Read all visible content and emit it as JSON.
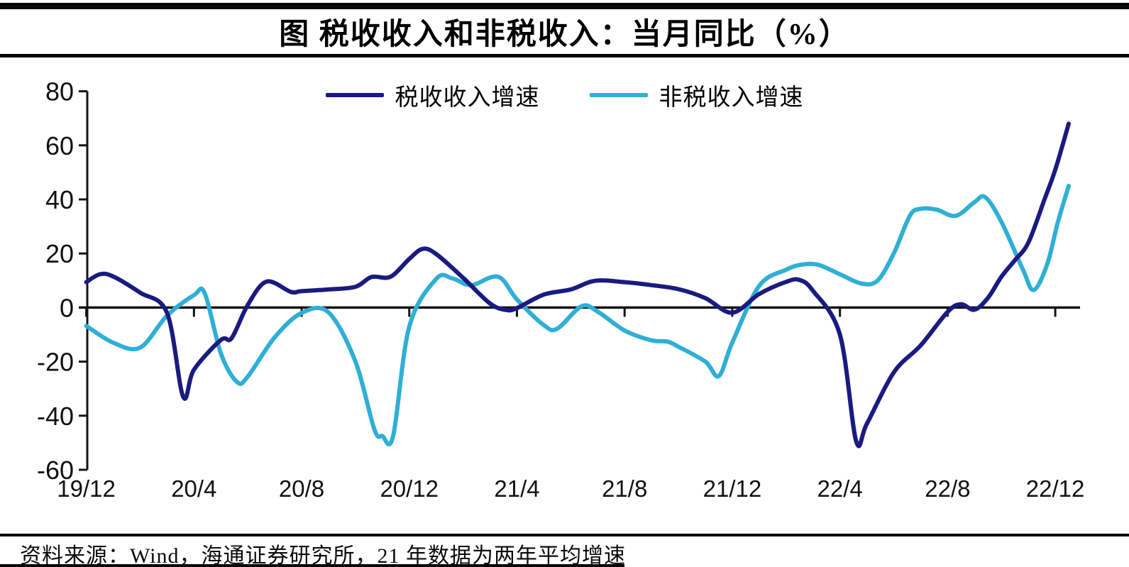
{
  "title": "图 税收收入和非税收入：当月同比（%）",
  "source_note": "资料来源：Wind，海通证券研究所，21 年数据为两年平均增速",
  "legend": [
    {
      "label": "税收收入增速",
      "color": "#1a1a80"
    },
    {
      "label": "非税收入增速",
      "color": "#2fafd6"
    }
  ],
  "colors": {
    "tax_line": "#1a1a80",
    "nontax_line": "#2fafd6",
    "axis": "#141414",
    "text": "#111111"
  },
  "chart_data": {
    "type": "line",
    "title": "图 税收收入和非税收入：当月同比（%）",
    "x_unit": "month index, 0 = 19/12 … 36 = 22/12",
    "x_axis": {
      "tick_labels": [
        "19/12",
        "20/4",
        "20/8",
        "20/12",
        "21/4",
        "21/8",
        "21/12",
        "22/4",
        "22/8",
        "22/12"
      ],
      "tick_month_index": [
        0,
        4,
        8,
        12,
        16,
        20,
        24,
        28,
        32,
        36
      ]
    },
    "y_axis": {
      "ticks": [
        80,
        60,
        40,
        20,
        0,
        -20,
        -40,
        -60
      ],
      "range": [
        -60,
        80
      ]
    },
    "grid": false,
    "legend_position": "top-center",
    "series": [
      {
        "name": "税收收入增速",
        "color": "#1a1a80",
        "points": [
          [
            0,
            9.4
          ],
          [
            0.5,
            12.3
          ],
          [
            1,
            11.5
          ],
          [
            2,
            5.5
          ],
          [
            3,
            -2
          ],
          [
            3.6,
            -33
          ],
          [
            4,
            -23
          ],
          [
            5,
            -12
          ],
          [
            5.4,
            -11.3
          ],
          [
            6,
            1
          ],
          [
            6.7,
            9.6
          ],
          [
            7.6,
            5.8
          ],
          [
            8,
            6.1
          ],
          [
            9,
            6.7
          ],
          [
            10,
            7.7
          ],
          [
            10.6,
            11.3
          ],
          [
            11.3,
            11.4
          ],
          [
            12,
            18
          ],
          [
            12.5,
            21.7
          ],
          [
            13,
            19.8
          ],
          [
            14,
            11
          ],
          [
            15,
            1.5
          ],
          [
            15.6,
            -0.9
          ],
          [
            16,
            -0.2
          ],
          [
            17,
            4.8
          ],
          [
            18,
            6.7
          ],
          [
            18.9,
            9.9
          ],
          [
            20,
            9.4
          ],
          [
            21,
            8.3
          ],
          [
            22,
            6.8
          ],
          [
            23,
            3.5
          ],
          [
            24,
            -1.9
          ],
          [
            25,
            5
          ],
          [
            26,
            9.5
          ],
          [
            26.5,
            10.2
          ],
          [
            27,
            6.2
          ],
          [
            28,
            -10
          ],
          [
            28.6,
            -49.3
          ],
          [
            29,
            -43
          ],
          [
            30,
            -24
          ],
          [
            31,
            -14
          ],
          [
            32,
            -1.6
          ],
          [
            32.5,
            1.2
          ],
          [
            33,
            -0.8
          ],
          [
            33.5,
            3.6
          ],
          [
            34,
            11.4
          ],
          [
            34.5,
            17.5
          ],
          [
            35,
            24
          ],
          [
            35.6,
            40
          ],
          [
            36,
            51
          ],
          [
            36.5,
            68
          ]
        ]
      },
      {
        "name": "非税收入增速",
        "color": "#2fafd6",
        "points": [
          [
            0,
            -6.8
          ],
          [
            1,
            -13
          ],
          [
            2,
            -14.8
          ],
          [
            3,
            -3
          ],
          [
            4,
            4.6
          ],
          [
            4.4,
            5.3
          ],
          [
            5,
            -17
          ],
          [
            5.6,
            -27.5
          ],
          [
            6,
            -25.5
          ],
          [
            7,
            -11
          ],
          [
            8,
            -2
          ],
          [
            9,
            -1.8
          ],
          [
            10,
            -20
          ],
          [
            10.7,
            -45
          ],
          [
            11,
            -47.5
          ],
          [
            11.4,
            -47.5
          ],
          [
            12,
            -7
          ],
          [
            13,
            10.6
          ],
          [
            13.6,
            10.8
          ],
          [
            14.3,
            8.3
          ],
          [
            15.3,
            11.4
          ],
          [
            16,
            3
          ],
          [
            17,
            -6.5
          ],
          [
            17.5,
            -7.8
          ],
          [
            18.4,
            0.5
          ],
          [
            19,
            -1.5
          ],
          [
            20,
            -8.5
          ],
          [
            21,
            -12.1
          ],
          [
            21.6,
            -12.6
          ],
          [
            22,
            -14.5
          ],
          [
            23,
            -20
          ],
          [
            23.5,
            -25.3
          ],
          [
            24,
            -13
          ],
          [
            25,
            8
          ],
          [
            26,
            14
          ],
          [
            26.6,
            15.9
          ],
          [
            27.2,
            15.8
          ],
          [
            28,
            12.3
          ],
          [
            28.8,
            8.9
          ],
          [
            29.4,
            10
          ],
          [
            30,
            20
          ],
          [
            30.6,
            34
          ],
          [
            31,
            36.5
          ],
          [
            31.6,
            36.2
          ],
          [
            32.3,
            33.9
          ],
          [
            33,
            39
          ],
          [
            33.4,
            40.8
          ],
          [
            34,
            31.7
          ],
          [
            34.8,
            14
          ],
          [
            35.2,
            6.5
          ],
          [
            35.7,
            16
          ],
          [
            36.1,
            31.7
          ],
          [
            36.5,
            45
          ]
        ]
      }
    ]
  }
}
